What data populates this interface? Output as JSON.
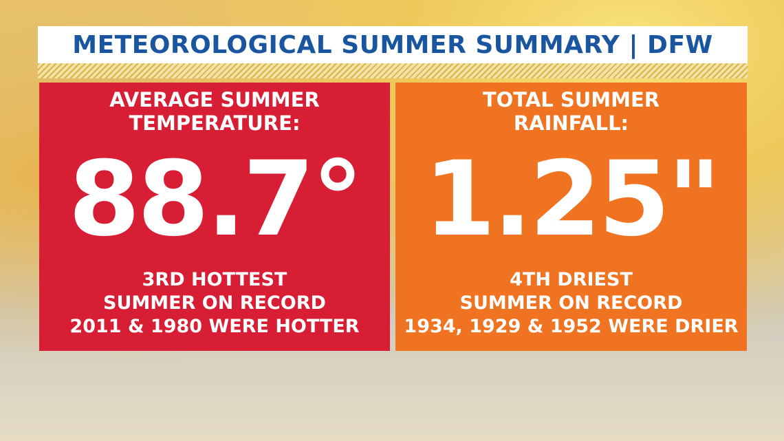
{
  "header": {
    "title": "METEOROLOGICAL SUMMER SUMMARY | DFW"
  },
  "panels": [
    {
      "label": [
        "AVERAGE SUMMER",
        "TEMPERATURE:"
      ],
      "value": "88.7°",
      "notes": [
        "3RD HOTTEST",
        "SUMMER ON RECORD",
        "2011 & 1980 WERE HOTTER"
      ]
    },
    {
      "label": [
        "TOTAL SUMMER",
        "RAINFALL:"
      ],
      "value": "1.25\"",
      "notes": [
        "4TH DRIEST",
        "SUMMER ON RECORD",
        "1934, 1929 & 1952 WERE DRIER"
      ]
    }
  ]
}
